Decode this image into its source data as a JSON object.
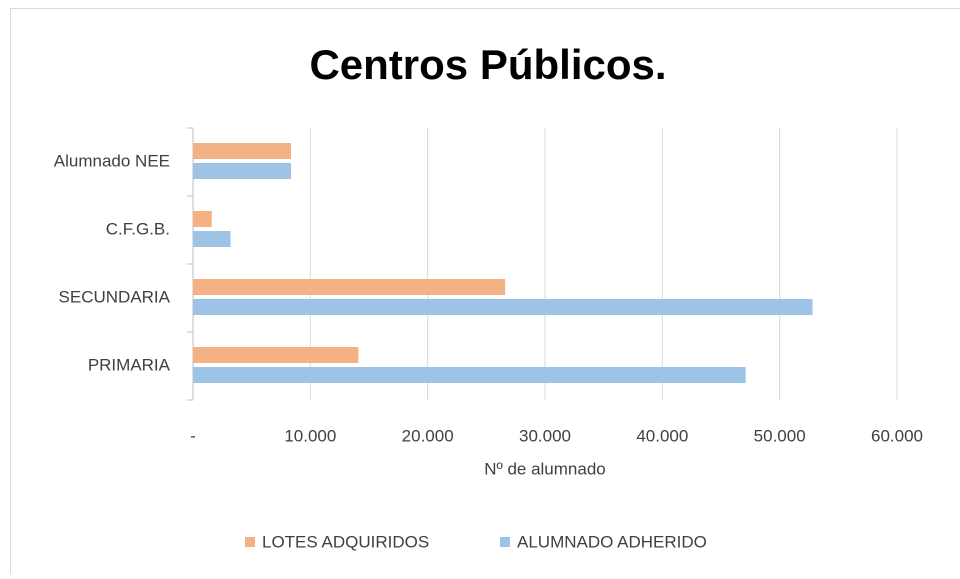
{
  "chart_data": {
    "type": "barh",
    "title": "Centros Públicos.",
    "xlabel": "Nº de alumnado",
    "categories": [
      "PRIMARIA",
      "SECUNDARIA",
      "C.F.G.B.",
      "Alumnado NEE"
    ],
    "series": [
      {
        "name": "LOTES ADQUIRIDOS",
        "color": "#f4b183",
        "values": [
          14100,
          26600,
          1600,
          8350
        ]
      },
      {
        "name": "ALUMNADO ADHERIDO",
        "color": "#9dc3e6",
        "values": [
          47100,
          52800,
          3200,
          8350
        ]
      }
    ],
    "xlim": [
      0,
      60000
    ],
    "xticks": [
      {
        "value": 0,
        "label": "-"
      },
      {
        "value": 10000,
        "label": "10.000"
      },
      {
        "value": 20000,
        "label": "20.000"
      },
      {
        "value": 30000,
        "label": "30.000"
      },
      {
        "value": 40000,
        "label": "40.000"
      },
      {
        "value": 50000,
        "label": "50.000"
      },
      {
        "value": 60000,
        "label": "60.000"
      }
    ],
    "grid": true,
    "legend": "bottom"
  }
}
